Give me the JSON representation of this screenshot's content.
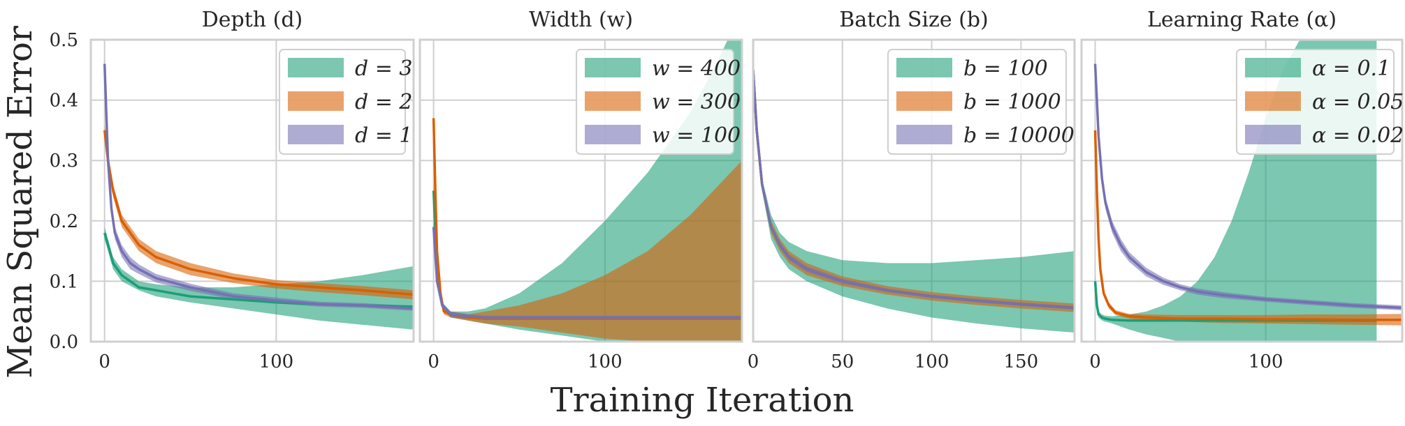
{
  "figure": {
    "ylabel": "Mean Squared Error",
    "xlabel": "Training Iteration"
  },
  "colors": {
    "green": "#1b9e77",
    "orange": "#d95f02",
    "purple": "#7570b3",
    "grid": "#cfcfcf",
    "frame": "#cfcfcf"
  },
  "chart_data": [
    {
      "type": "line",
      "title": "Depth (d)",
      "xlim": [
        -8,
        180
      ],
      "ylim": [
        0,
        0.5
      ],
      "xticks": [
        0,
        100
      ],
      "yticks": [
        0.0,
        0.1,
        0.2,
        0.3,
        0.4,
        0.5
      ],
      "legend": {
        "position": "top-right"
      },
      "series": [
        {
          "name": "d = 3",
          "color": "green",
          "x": [
            0,
            2,
            5,
            10,
            20,
            30,
            50,
            75,
            100,
            125,
            150,
            180
          ],
          "y": [
            0.18,
            0.16,
            0.13,
            0.11,
            0.09,
            0.085,
            0.075,
            0.07,
            0.065,
            0.062,
            0.06,
            0.058
          ],
          "band_lower": [
            0.17,
            0.15,
            0.12,
            0.1,
            0.085,
            0.075,
            0.065,
            0.055,
            0.045,
            0.035,
            0.028,
            0.02
          ],
          "band_upper": [
            0.19,
            0.17,
            0.14,
            0.12,
            0.1,
            0.095,
            0.09,
            0.09,
            0.095,
            0.1,
            0.11,
            0.125
          ]
        },
        {
          "name": "d = 2",
          "color": "orange",
          "x": [
            0,
            2,
            5,
            10,
            15,
            20,
            30,
            50,
            75,
            100,
            125,
            150,
            180
          ],
          "y": [
            0.35,
            0.3,
            0.25,
            0.2,
            0.18,
            0.16,
            0.14,
            0.12,
            0.105,
            0.095,
            0.09,
            0.085,
            0.078
          ],
          "band_lower": [
            0.34,
            0.29,
            0.24,
            0.19,
            0.17,
            0.15,
            0.13,
            0.11,
            0.097,
            0.088,
            0.082,
            0.077,
            0.07
          ],
          "band_upper": [
            0.36,
            0.31,
            0.26,
            0.21,
            0.19,
            0.17,
            0.15,
            0.13,
            0.113,
            0.102,
            0.097,
            0.092,
            0.085
          ]
        },
        {
          "name": "d = 1",
          "color": "purple",
          "x": [
            0,
            1,
            2,
            4,
            6,
            10,
            15,
            20,
            30,
            50,
            75,
            100,
            125,
            150,
            180
          ],
          "y": [
            0.46,
            0.38,
            0.3,
            0.22,
            0.18,
            0.15,
            0.13,
            0.12,
            0.105,
            0.09,
            0.075,
            0.068,
            0.062,
            0.06,
            0.055
          ],
          "band_lower": [
            0.45,
            0.37,
            0.29,
            0.21,
            0.17,
            0.14,
            0.12,
            0.112,
            0.098,
            0.084,
            0.07,
            0.063,
            0.058,
            0.056,
            0.051
          ],
          "band_upper": [
            0.47,
            0.39,
            0.31,
            0.23,
            0.19,
            0.16,
            0.14,
            0.128,
            0.112,
            0.096,
            0.08,
            0.073,
            0.066,
            0.064,
            0.059
          ]
        }
      ]
    },
    {
      "type": "line",
      "title": "Width (w)",
      "xlim": [
        -8,
        180
      ],
      "ylim": [
        0,
        0.5
      ],
      "xticks": [
        0,
        100
      ],
      "legend": {
        "position": "top-right"
      },
      "series": [
        {
          "name": "w = 400",
          "color": "green",
          "x": [
            0,
            2,
            5,
            10,
            20,
            30,
            50,
            75,
            100,
            125,
            150,
            165,
            180
          ],
          "y": [
            0.25,
            0.12,
            0.06,
            0.045,
            0.04,
            0.04,
            0.04,
            0.04,
            0.04,
            0.04,
            0.04,
            0.04,
            0.04
          ],
          "band_lower": [
            0.24,
            0.11,
            0.055,
            0.04,
            0.035,
            0.03,
            0.02,
            0.01,
            0.0,
            0.0,
            0.0,
            0.0,
            0.0
          ],
          "band_upper": [
            0.26,
            0.13,
            0.065,
            0.05,
            0.05,
            0.055,
            0.08,
            0.13,
            0.2,
            0.28,
            0.38,
            0.46,
            0.55
          ]
        },
        {
          "name": "w = 300",
          "color": "orange",
          "x": [
            0,
            1,
            2,
            4,
            6,
            10,
            20,
            30,
            50,
            75,
            100,
            125,
            150,
            180
          ],
          "y": [
            0.37,
            0.25,
            0.15,
            0.08,
            0.05,
            0.045,
            0.04,
            0.038,
            0.038,
            0.038,
            0.038,
            0.038,
            0.038,
            0.038
          ],
          "band_lower": [
            0.36,
            0.24,
            0.14,
            0.075,
            0.045,
            0.04,
            0.035,
            0.03,
            0.025,
            0.015,
            0.005,
            0.0,
            0.0,
            0.0
          ],
          "band_upper": [
            0.38,
            0.26,
            0.16,
            0.085,
            0.055,
            0.05,
            0.045,
            0.05,
            0.06,
            0.08,
            0.11,
            0.15,
            0.21,
            0.3
          ]
        },
        {
          "name": "w = 100",
          "color": "purple",
          "x": [
            0,
            2,
            5,
            10,
            20,
            30,
            50,
            75,
            100,
            125,
            150,
            180
          ],
          "y": [
            0.19,
            0.1,
            0.06,
            0.045,
            0.042,
            0.04,
            0.04,
            0.04,
            0.04,
            0.04,
            0.04,
            0.04
          ],
          "band_lower": [
            0.18,
            0.095,
            0.055,
            0.04,
            0.038,
            0.037,
            0.037,
            0.037,
            0.037,
            0.037,
            0.037,
            0.037
          ],
          "band_upper": [
            0.2,
            0.105,
            0.065,
            0.05,
            0.046,
            0.043,
            0.043,
            0.043,
            0.043,
            0.043,
            0.043,
            0.043
          ]
        }
      ]
    },
    {
      "type": "line",
      "title": "Batch Size (b)",
      "xlim": [
        0,
        180
      ],
      "ylim": [
        0,
        0.5
      ],
      "xticks": [
        0,
        50,
        100,
        150
      ],
      "legend": {
        "position": "top-right"
      },
      "series": [
        {
          "name": "b = 100",
          "color": "green",
          "x": [
            0,
            2,
            5,
            10,
            15,
            20,
            30,
            50,
            75,
            100,
            125,
            150,
            180
          ],
          "y": [
            0.45,
            0.35,
            0.26,
            0.19,
            0.16,
            0.14,
            0.12,
            0.1,
            0.085,
            0.075,
            0.068,
            0.062,
            0.056
          ],
          "band_lower": [
            0.44,
            0.34,
            0.25,
            0.17,
            0.14,
            0.12,
            0.1,
            0.075,
            0.055,
            0.04,
            0.03,
            0.022,
            0.015
          ],
          "band_upper": [
            0.46,
            0.36,
            0.27,
            0.21,
            0.18,
            0.165,
            0.15,
            0.135,
            0.13,
            0.13,
            0.135,
            0.14,
            0.15
          ]
        },
        {
          "name": "b = 1000",
          "color": "orange",
          "x": [
            0,
            2,
            5,
            10,
            15,
            20,
            30,
            50,
            75,
            100,
            125,
            150,
            180
          ],
          "y": [
            0.45,
            0.35,
            0.26,
            0.19,
            0.16,
            0.14,
            0.12,
            0.1,
            0.085,
            0.075,
            0.068,
            0.062,
            0.056
          ],
          "band_lower": [
            0.44,
            0.34,
            0.25,
            0.18,
            0.15,
            0.13,
            0.11,
            0.092,
            0.078,
            0.068,
            0.061,
            0.055,
            0.049
          ],
          "band_upper": [
            0.46,
            0.36,
            0.27,
            0.2,
            0.17,
            0.15,
            0.13,
            0.108,
            0.092,
            0.082,
            0.075,
            0.069,
            0.063
          ]
        },
        {
          "name": "b = 10000",
          "color": "purple",
          "x": [
            0,
            2,
            5,
            10,
            15,
            20,
            30,
            50,
            75,
            100,
            125,
            150,
            180
          ],
          "y": [
            0.45,
            0.35,
            0.26,
            0.19,
            0.16,
            0.14,
            0.12,
            0.1,
            0.085,
            0.075,
            0.068,
            0.062,
            0.056
          ],
          "band_lower": [
            0.445,
            0.345,
            0.255,
            0.185,
            0.155,
            0.135,
            0.115,
            0.096,
            0.082,
            0.072,
            0.065,
            0.059,
            0.053
          ],
          "band_upper": [
            0.455,
            0.355,
            0.265,
            0.195,
            0.165,
            0.145,
            0.125,
            0.104,
            0.088,
            0.078,
            0.071,
            0.065,
            0.059
          ]
        }
      ]
    },
    {
      "type": "line",
      "title": "Learning Rate (α)",
      "xlim": [
        -8,
        180
      ],
      "ylim": [
        0,
        0.5
      ],
      "xticks": [
        0,
        100
      ],
      "legend": {
        "position": "top-right"
      },
      "series": [
        {
          "name": "α = 0.1",
          "color": "green",
          "x": [
            0,
            1,
            2,
            4,
            6,
            10,
            20,
            30,
            40,
            50,
            60,
            70,
            80,
            90,
            100,
            110,
            120,
            130,
            140,
            150,
            160,
            165
          ],
          "y": [
            0.1,
            0.06,
            0.045,
            0.04,
            0.038,
            0.036,
            0.035,
            0.035,
            0.035,
            0.035,
            0.035,
            0.035,
            0.035,
            0.035,
            0.035,
            0.035,
            0.035,
            0.035,
            0.035,
            0.035,
            0.035,
            0.035
          ],
          "band_lower": [
            0.09,
            0.055,
            0.04,
            0.035,
            0.033,
            0.03,
            0.02,
            0.012,
            0.006,
            0.0,
            0.0,
            0.0,
            0.0,
            0.0,
            0.0,
            0.0,
            0.0,
            0.0,
            0.0,
            0.0,
            0.0,
            0.0
          ],
          "band_upper": [
            0.11,
            0.065,
            0.05,
            0.045,
            0.043,
            0.042,
            0.045,
            0.05,
            0.06,
            0.075,
            0.1,
            0.14,
            0.2,
            0.28,
            0.37,
            0.45,
            0.5,
            0.5,
            0.5,
            0.5,
            0.5,
            0.5
          ]
        },
        {
          "name": "α = 0.05",
          "color": "orange",
          "x": [
            0,
            1,
            2,
            3,
            5,
            8,
            12,
            20,
            30,
            50,
            75,
            100,
            125,
            150,
            180
          ],
          "y": [
            0.35,
            0.25,
            0.17,
            0.12,
            0.08,
            0.06,
            0.048,
            0.042,
            0.04,
            0.038,
            0.038,
            0.037,
            0.037,
            0.036,
            0.036
          ],
          "band_lower": [
            0.34,
            0.24,
            0.16,
            0.11,
            0.075,
            0.055,
            0.044,
            0.038,
            0.035,
            0.033,
            0.031,
            0.03,
            0.029,
            0.028,
            0.027
          ],
          "band_upper": [
            0.36,
            0.26,
            0.18,
            0.13,
            0.085,
            0.065,
            0.052,
            0.046,
            0.045,
            0.044,
            0.044,
            0.044,
            0.045,
            0.045,
            0.046
          ]
        },
        {
          "name": "α = 0.02",
          "color": "purple",
          "x": [
            0,
            1,
            2,
            4,
            6,
            10,
            15,
            20,
            30,
            40,
            50,
            60,
            75,
            100,
            125,
            150,
            180
          ],
          "y": [
            0.46,
            0.4,
            0.34,
            0.27,
            0.23,
            0.19,
            0.16,
            0.14,
            0.115,
            0.1,
            0.09,
            0.083,
            0.077,
            0.07,
            0.065,
            0.06,
            0.056
          ],
          "band_lower": [
            0.45,
            0.39,
            0.33,
            0.26,
            0.22,
            0.18,
            0.15,
            0.132,
            0.108,
            0.094,
            0.085,
            0.078,
            0.072,
            0.066,
            0.061,
            0.056,
            0.052
          ],
          "band_upper": [
            0.47,
            0.41,
            0.35,
            0.28,
            0.24,
            0.2,
            0.17,
            0.148,
            0.122,
            0.106,
            0.095,
            0.088,
            0.082,
            0.074,
            0.069,
            0.064,
            0.06
          ]
        }
      ]
    }
  ]
}
